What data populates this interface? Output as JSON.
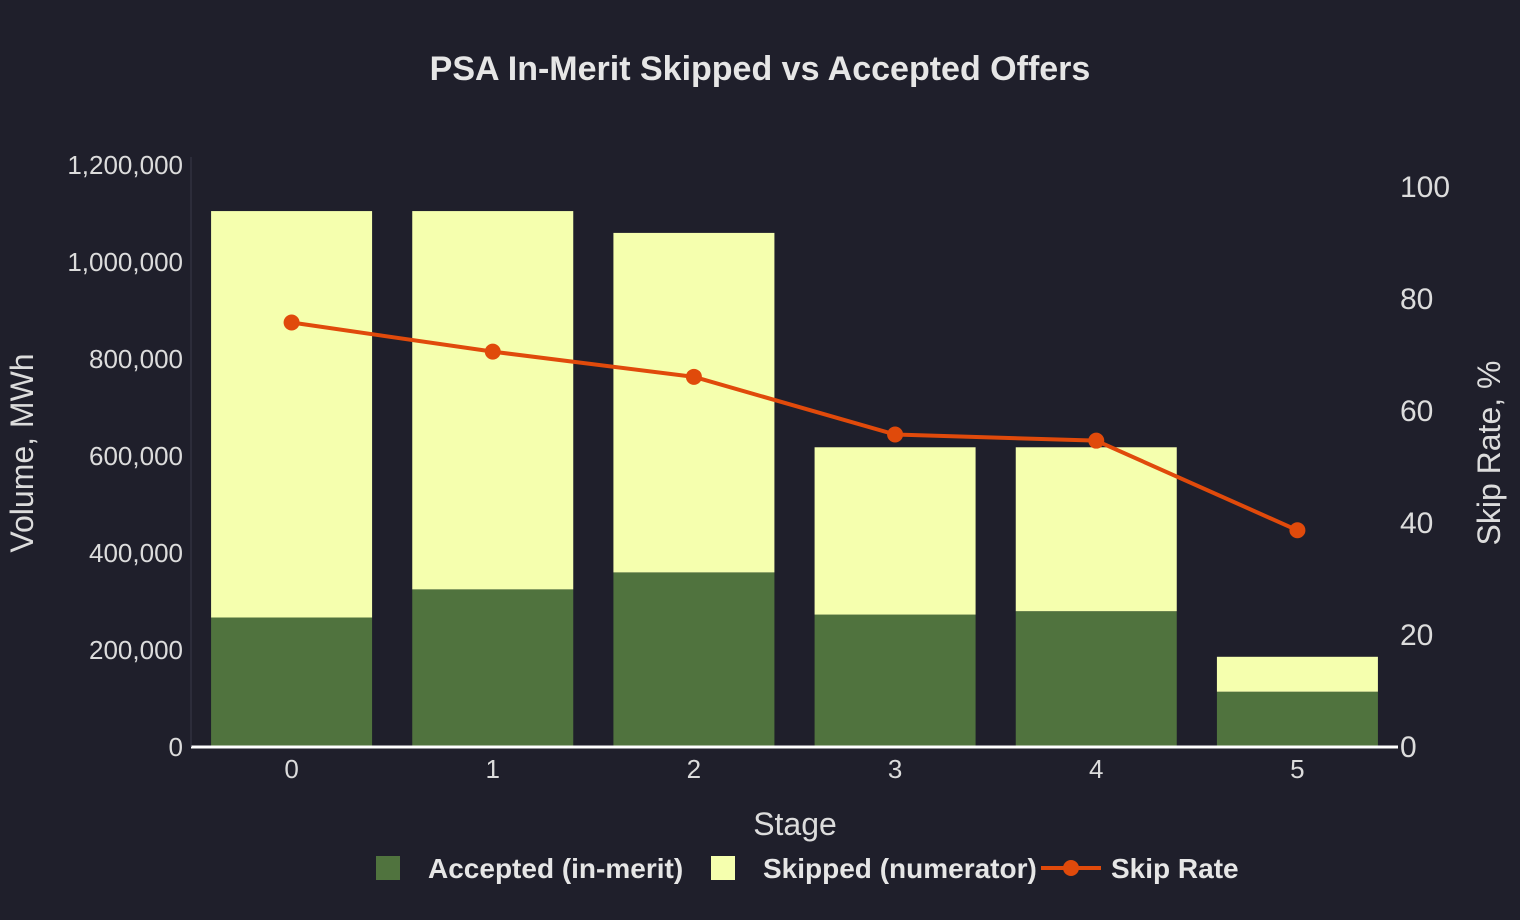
{
  "colors": {
    "background": "#1f1f2b",
    "accepted": "#50733e",
    "skipped": "#f5ffae",
    "skip_rate": "#e04a0b",
    "text": "#dcdcdc",
    "axis_line": "#ffffff"
  },
  "chart_data": {
    "type": "bar",
    "barmode": "stack",
    "title": "PSA In-Merit Skipped vs Accepted Offers",
    "xlabel": "Stage",
    "ylabel": "Volume, MWh",
    "y2label": "Skip Rate, %",
    "categories": [
      "0",
      "1",
      "2",
      "3",
      "4",
      "5"
    ],
    "ylim": [
      0,
      1200000
    ],
    "y2lim": [
      0,
      100
    ],
    "yticks": [
      "0",
      "200,000",
      "400,000",
      "600,000",
      "800,000",
      "1,000,000",
      "1,200,000"
    ],
    "y2ticks": [
      "0",
      "20",
      "40",
      "60",
      "80",
      "100"
    ],
    "series": [
      {
        "name": "Accepted (in-merit)",
        "type": "bar",
        "axis": "left",
        "values": [
          267000,
          325000,
          360000,
          273000,
          280000,
          114000
        ]
      },
      {
        "name": "Skipped (numerator)",
        "type": "bar",
        "axis": "left",
        "values": [
          838000,
          780000,
          700000,
          345000,
          338000,
          72000
        ]
      },
      {
        "name": "Skip Rate",
        "type": "line",
        "axis": "right",
        "values": [
          75.8,
          70.6,
          66.1,
          55.8,
          54.7,
          38.7
        ]
      }
    ],
    "legend": "bottom-center",
    "grid": false
  }
}
